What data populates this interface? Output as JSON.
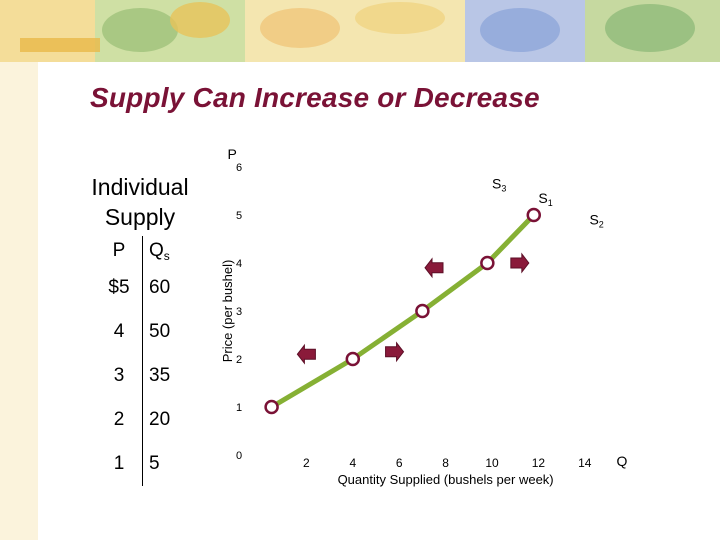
{
  "page": {
    "title": "Supply Can Increase or Decrease",
    "side_title_line1": "Individual",
    "side_title_line2": "Supply"
  },
  "table": {
    "headers": {
      "price": "P",
      "quantity": "Q",
      "quantity_subscript": "s"
    },
    "rows": [
      {
        "price": "$5",
        "quantity": "60"
      },
      {
        "price": "4",
        "quantity": "50"
      },
      {
        "price": "3",
        "quantity": "35"
      },
      {
        "price": "2",
        "quantity": "20"
      },
      {
        "price": "1",
        "quantity": "5"
      }
    ]
  },
  "colors": {
    "title": "#7a1236",
    "curve": "#86b034",
    "marker_border": "#7a1236",
    "arrow": "#8a1a3a"
  },
  "chart_data": {
    "type": "line",
    "ylabel": "Price (per bushel)",
    "xlabel": "Quantity Supplied (bushels per week)",
    "y_axis_letter": "P",
    "x_axis_letter": "Q",
    "xlim": [
      0,
      16
    ],
    "ylim": [
      0,
      6
    ],
    "x_ticks": [
      2,
      4,
      6,
      8,
      10,
      12,
      14
    ],
    "y_ticks": [
      0,
      1,
      2,
      3,
      4,
      5,
      6
    ],
    "grid": false,
    "series": [
      {
        "name": "S",
        "name_subscript": "1",
        "x": [
          0.5,
          4,
          7,
          9.8,
          11.8
        ],
        "y": [
          1,
          2,
          3,
          4,
          5
        ],
        "markers": true
      }
    ],
    "curve_labels": [
      {
        "name": "S",
        "subscript": "3",
        "x": 10,
        "y": 5.55
      },
      {
        "name": "S",
        "subscript": "1",
        "x": 12,
        "y": 5.25
      },
      {
        "name": "S",
        "subscript": "2",
        "x": 14.2,
        "y": 4.8
      }
    ],
    "shift_arrows": [
      {
        "direction": "left",
        "x": 7.5,
        "y": 3.9
      },
      {
        "direction": "right",
        "x": 11.2,
        "y": 4.0
      },
      {
        "direction": "left",
        "x": 2.0,
        "y": 2.1
      },
      {
        "direction": "right",
        "x": 5.8,
        "y": 2.15
      }
    ]
  }
}
